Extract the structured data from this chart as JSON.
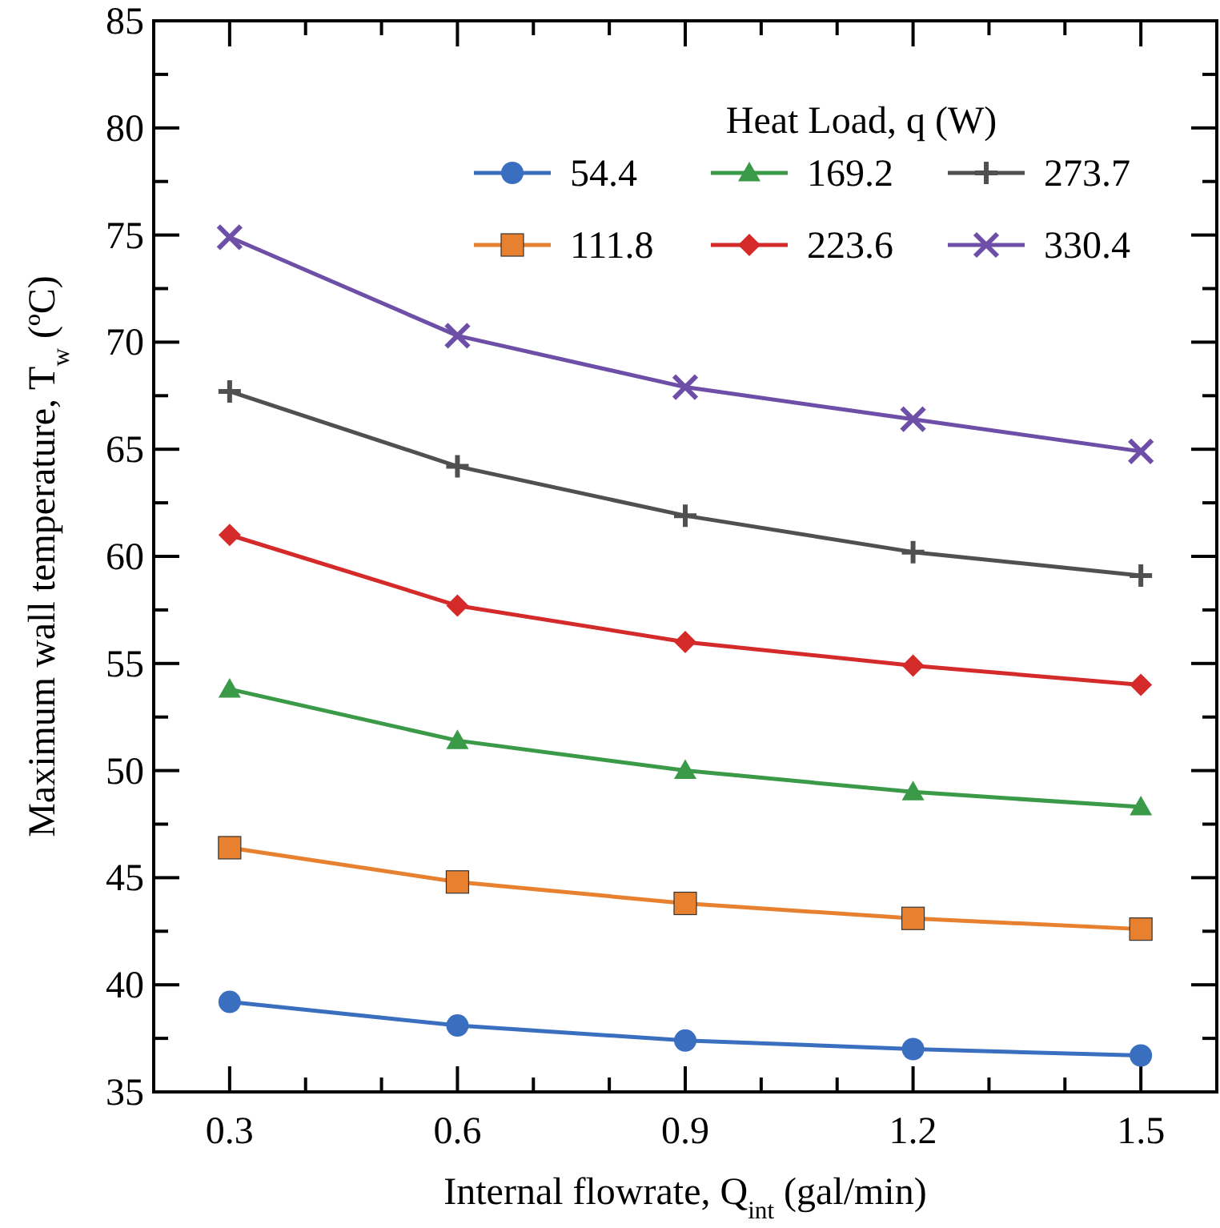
{
  "chart_data": {
    "type": "line",
    "xlabel": "Internal flowrate, Q$_{int}$ (gal/min)",
    "ylabel": "Maximum wall temperature, T$_{w}$ (ºC)",
    "legend_title": "Heat Load, q (W)",
    "x": [
      0.3,
      0.6,
      0.9,
      1.2,
      1.5
    ],
    "series": [
      {
        "name": "54.4",
        "color": "#3a6fc0",
        "marker": "circle",
        "values": [
          39.2,
          38.1,
          37.4,
          37.0,
          36.7
        ]
      },
      {
        "name": "111.8",
        "color": "#e8812f",
        "marker": "square",
        "values": [
          46.4,
          44.8,
          43.8,
          43.1,
          42.6
        ]
      },
      {
        "name": "169.2",
        "color": "#3a9a48",
        "marker": "triangle",
        "values": [
          53.8,
          51.4,
          50.0,
          49.0,
          48.3
        ]
      },
      {
        "name": "223.6",
        "color": "#d42a2a",
        "marker": "diamond",
        "values": [
          61.0,
          57.7,
          56.0,
          54.9,
          54.0
        ]
      },
      {
        "name": "273.7",
        "color": "#505050",
        "marker": "plus",
        "values": [
          67.7,
          64.2,
          61.9,
          60.2,
          59.1
        ]
      },
      {
        "name": "330.4",
        "color": "#6e4fa8",
        "marker": "cross",
        "values": [
          74.9,
          70.3,
          67.9,
          66.4,
          64.9
        ]
      }
    ],
    "xlim": [
      0.2,
      1.6
    ],
    "xticks": [
      0.3,
      {
        "value": 0.4,
        "label": null
      },
      {
        "value": 0.5,
        "label": null
      },
      0.6,
      {
        "value": 0.7,
        "label": null
      },
      {
        "value": 0.8,
        "label": null
      },
      0.9,
      {
        "value": 1.0,
        "label": null
      },
      {
        "value": 1.1,
        "label": null
      },
      1.2,
      {
        "value": 1.3,
        "label": null
      },
      {
        "value": 1.4,
        "label": null
      },
      1.5
    ],
    "ylim": [
      35,
      85
    ],
    "yticks": [
      35,
      {
        "value": 37.5,
        "label": null
      },
      40,
      {
        "value": 42.5,
        "label": null
      },
      45,
      {
        "value": 47.5,
        "label": null
      },
      50,
      {
        "value": 52.5,
        "label": null
      },
      55,
      {
        "value": 57.5,
        "label": null
      },
      60,
      {
        "value": 62.5,
        "label": null
      },
      65,
      {
        "value": 67.5,
        "label": null
      },
      70,
      {
        "value": 72.5,
        "label": null
      },
      75,
      {
        "value": 77.5,
        "label": null
      },
      80,
      {
        "value": 82.5,
        "label": null
      },
      85
    ],
    "grid": false,
    "legend": "top right",
    "line_style": "solid"
  }
}
